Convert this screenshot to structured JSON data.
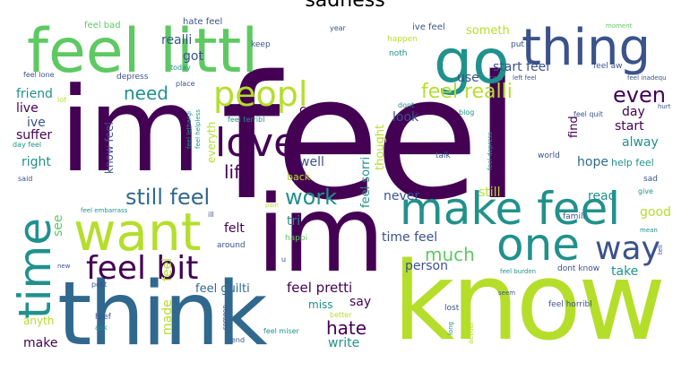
{
  "title": "sadness",
  "palette": {
    "purple": "#440154",
    "indigo": "#3b528b",
    "teal": "#21918c",
    "blue": "#31688e",
    "green": "#5ec962",
    "lime": "#b5de2b",
    "yellow": "#fde725"
  },
  "words": [
    {
      "text": "feel"
    },
    {
      "text": "im"
    },
    {
      "text": "know"
    },
    {
      "text": "think"
    },
    {
      "text": "im"
    },
    {
      "text": "feel littl"
    },
    {
      "text": "go"
    },
    {
      "text": "thing"
    },
    {
      "text": "want"
    },
    {
      "text": "make feel"
    },
    {
      "text": "one"
    },
    {
      "text": "time"
    },
    {
      "text": "love"
    },
    {
      "text": "peopl"
    },
    {
      "text": "feel bit"
    },
    {
      "text": "way"
    },
    {
      "text": "still feel"
    },
    {
      "text": "work"
    },
    {
      "text": "feel realli"
    },
    {
      "text": "even"
    },
    {
      "text": "need"
    },
    {
      "text": "life"
    },
    {
      "text": "much"
    },
    {
      "text": "hate"
    },
    {
      "text": "feel pretti"
    },
    {
      "text": "feel guilti"
    },
    {
      "text": "start feel"
    },
    {
      "text": "realli"
    },
    {
      "text": "got"
    },
    {
      "text": "friend"
    },
    {
      "text": "live"
    },
    {
      "text": "ive"
    },
    {
      "text": "suffer"
    },
    {
      "text": "right"
    },
    {
      "text": "know feel"
    },
    {
      "text": "everyth"
    },
    {
      "text": "come"
    },
    {
      "text": "well"
    },
    {
      "text": "feel sorri"
    },
    {
      "text": "thought"
    },
    {
      "text": "look"
    },
    {
      "text": "find"
    },
    {
      "text": "day"
    },
    {
      "text": "start"
    },
    {
      "text": "alway"
    },
    {
      "text": "hope"
    },
    {
      "text": "help feel"
    },
    {
      "text": "see"
    },
    {
      "text": "felt"
    },
    {
      "text": "tri"
    },
    {
      "text": "never"
    },
    {
      "text": "still"
    },
    {
      "text": "read"
    },
    {
      "text": "good"
    },
    {
      "text": "take"
    },
    {
      "text": "person"
    },
    {
      "text": "time feel"
    },
    {
      "text": "miss"
    },
    {
      "text": "say"
    },
    {
      "text": "write"
    },
    {
      "text": "made"
    },
    {
      "text": "feel"
    },
    {
      "text": "make"
    },
    {
      "text": "anyth"
    },
    {
      "text": "someth"
    },
    {
      "text": "use"
    },
    {
      "text": "ive feel"
    },
    {
      "text": "feel bad"
    },
    {
      "text": "hate feel"
    },
    {
      "text": "keep"
    },
    {
      "text": "happen"
    },
    {
      "text": "noth"
    },
    {
      "text": "put"
    },
    {
      "text": "feel aw"
    },
    {
      "text": "depress"
    },
    {
      "text": "feel lone"
    },
    {
      "text": "today"
    },
    {
      "text": "place"
    },
    {
      "text": "lot"
    },
    {
      "text": "dont"
    },
    {
      "text": "blog"
    },
    {
      "text": "feel terribl"
    },
    {
      "text": "feel quit"
    },
    {
      "text": "day feel"
    },
    {
      "text": "feel lethargi"
    },
    {
      "text": "feel helpless"
    },
    {
      "text": "said"
    },
    {
      "text": "feel embarrass"
    },
    {
      "text": "talk"
    },
    {
      "text": "world"
    },
    {
      "text": "feel depress"
    },
    {
      "text": "back"
    },
    {
      "text": "sad"
    },
    {
      "text": "give"
    },
    {
      "text": "famili"
    },
    {
      "text": "ill"
    },
    {
      "text": "around"
    },
    {
      "text": "happi"
    },
    {
      "text": "dont know"
    },
    {
      "text": "feel burden"
    },
    {
      "text": "mean"
    },
    {
      "text": "post"
    },
    {
      "text": "new"
    },
    {
      "text": "lost"
    },
    {
      "text": "actual"
    },
    {
      "text": "better"
    },
    {
      "text": "feel horribl"
    },
    {
      "text": "feel miser"
    },
    {
      "text": "href"
    },
    {
      "text": "ask"
    },
    {
      "text": "end"
    },
    {
      "text": "someon"
    },
    {
      "text": "long"
    },
    {
      "text": "seem"
    },
    {
      "text": "year"
    },
    {
      "text": "moment"
    },
    {
      "text": "hurt"
    },
    {
      "text": "feel inadequ"
    },
    {
      "text": "cant"
    },
    {
      "text": "left feel"
    },
    {
      "text": "pain"
    },
    {
      "text": "tell"
    },
    {
      "text": "u"
    }
  ]
}
